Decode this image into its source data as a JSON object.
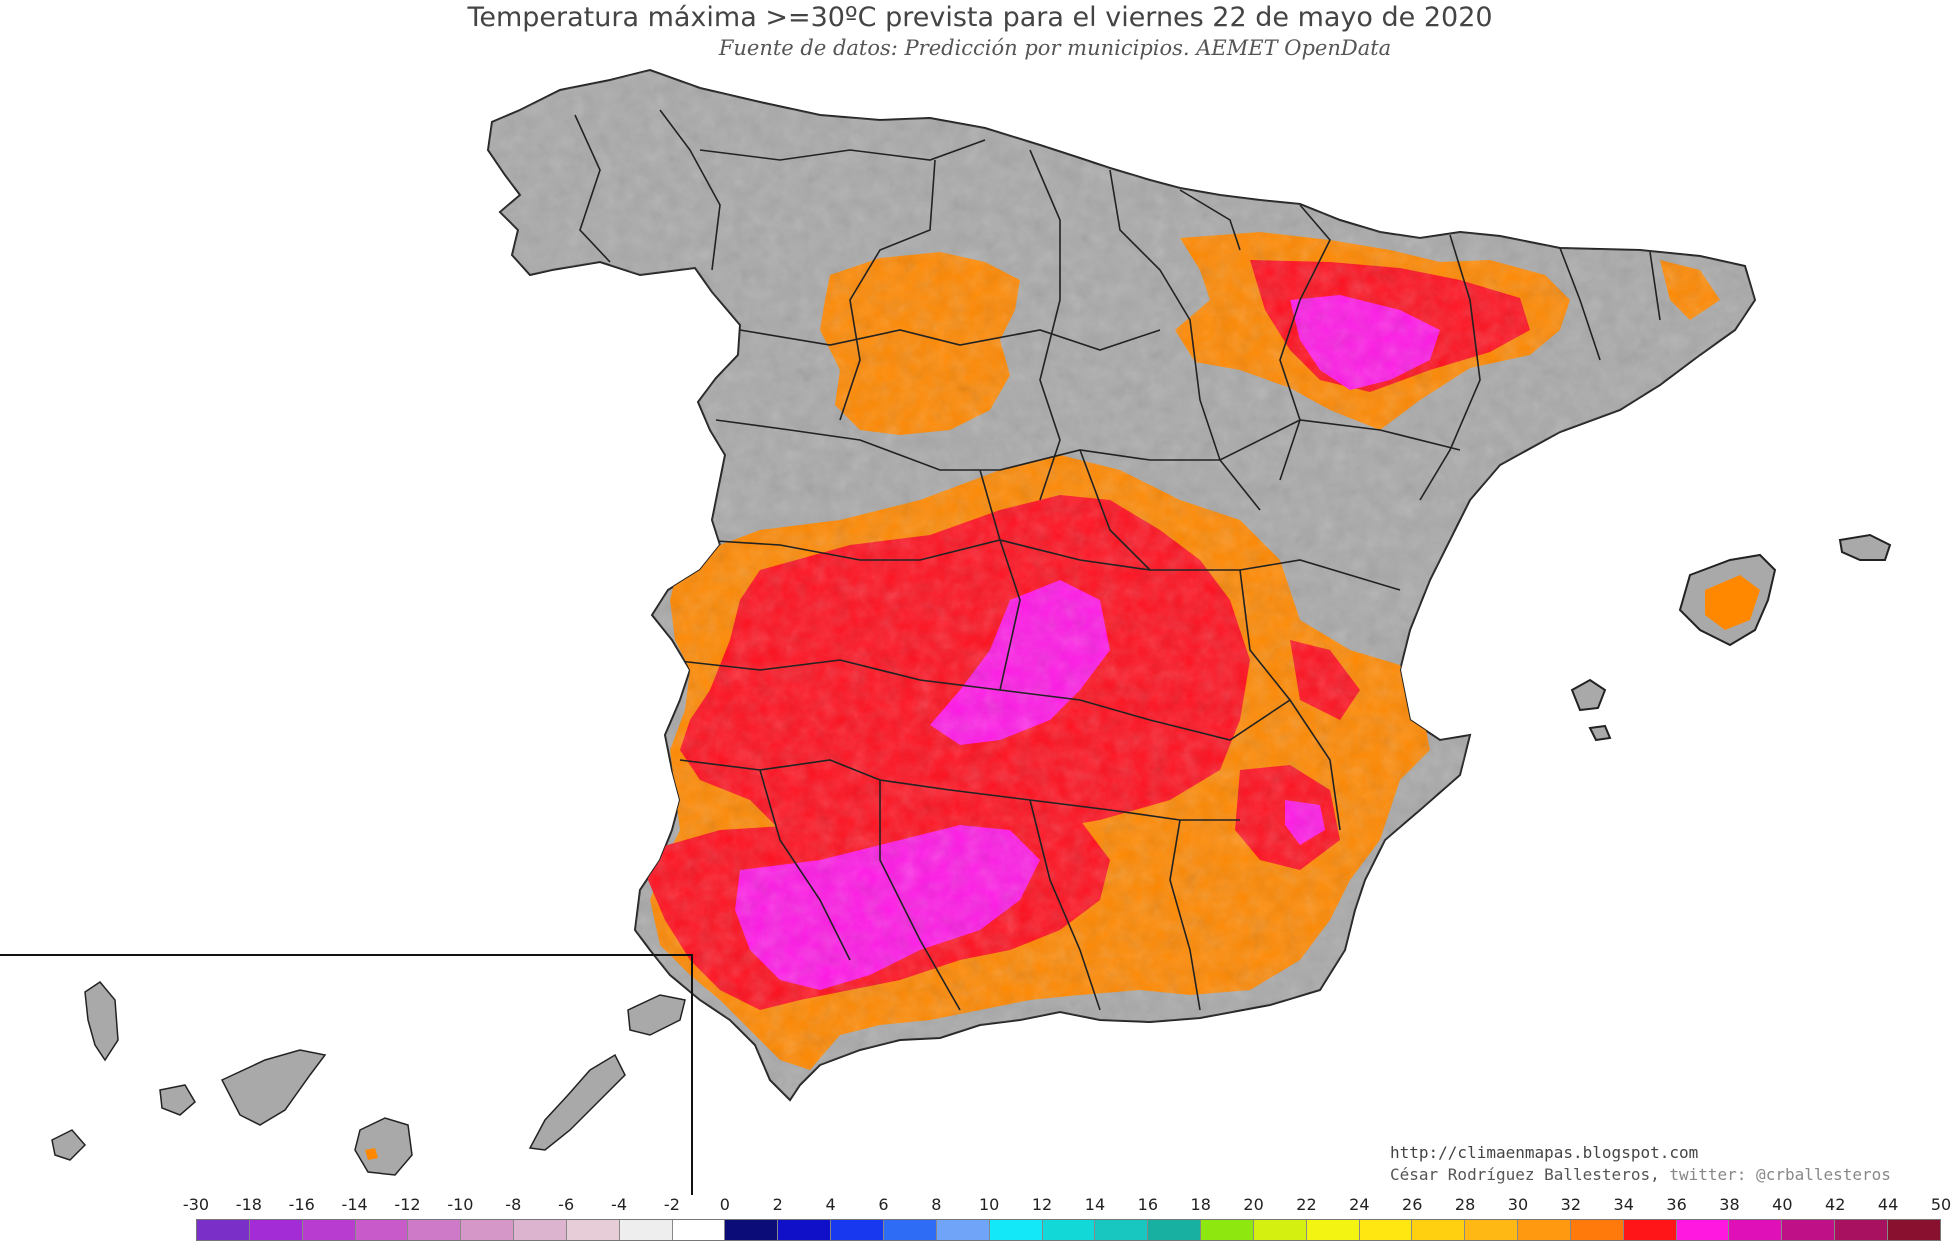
{
  "header": {
    "title": "Temperatura máxima >=30ºC prevista para el viernes 22 de mayo de 2020",
    "subtitle": "Fuente de datos: Predicción por municipios. AEMET OpenData"
  },
  "credits": {
    "blog": "http://climaenmapas.blogspot.com",
    "author": "César Rodríguez Ballesteros,",
    "twitter": "twitter: @crballesteros"
  },
  "map": {
    "region": "Spain",
    "base_color": "#a9a9a9",
    "border_color": "#222222",
    "threshold_note": ">=30ºC",
    "heat_colors": {
      "30-32": "#ff8800",
      "32-34": "#ff0f1e",
      "34-36": "#ff18e6",
      "36-38": "#e012c0"
    }
  },
  "legend": {
    "labels": [
      "-30",
      "-18",
      "-16",
      "-14",
      "-12",
      "-10",
      "-8",
      "-6",
      "-4",
      "-2",
      "0",
      "2",
      "4",
      "6",
      "8",
      "10",
      "12",
      "14",
      "16",
      "18",
      "20",
      "22",
      "24",
      "26",
      "28",
      "30",
      "32",
      "34",
      "36",
      "38",
      "40",
      "42",
      "44",
      "50"
    ],
    "colors": [
      "#7a2fc8",
      "#a32cd6",
      "#b83ccf",
      "#c85ac9",
      "#cf7ac8",
      "#d597c8",
      "#ddb4cf",
      "#e6cdd8",
      "#eeeeee",
      "#ffffff",
      "#0c0c78",
      "#1010c8",
      "#1838f0",
      "#2f6cf5",
      "#6fa4f8",
      "#13e8f8",
      "#12d8d8",
      "#18c8c0",
      "#18b0a0",
      "#8ee810",
      "#d4f010",
      "#f4f412",
      "#ffe811",
      "#ffd010",
      "#ffb814",
      "#ff9a10",
      "#ff7a0a",
      "#ff1418",
      "#ff18e0",
      "#e010b8",
      "#c01088",
      "#a81060",
      "#8a1030"
    ]
  }
}
